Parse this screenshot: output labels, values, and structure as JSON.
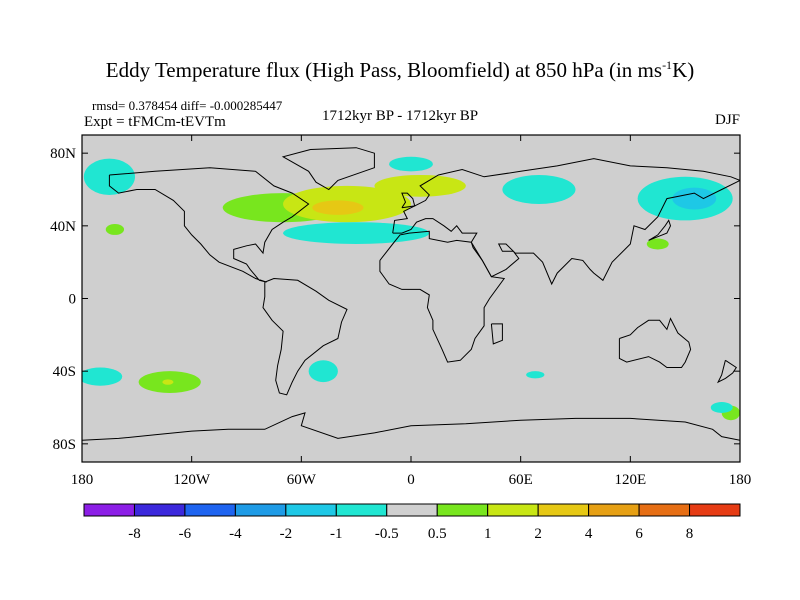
{
  "header": {
    "title": "Eddy Temperature flux (High Pass, Bloomfield) at 850 hPa (in ms",
    "title_sup": "-1",
    "title_end": "K)",
    "stats": "rmsd= 0.378454 diff= -0.000285447",
    "experiment": "Expt = tFMCm-tEVTm",
    "period": "1712kyr BP - 1712kyr BP",
    "season": "DJF"
  },
  "map": {
    "lat_labels": [
      "80N",
      "40N",
      "0",
      "40S",
      "80S"
    ],
    "lat_values": [
      80,
      40,
      0,
      -40,
      -80
    ],
    "lon_labels": [
      "180",
      "120W",
      "60W",
      "0",
      "60E",
      "120E",
      "180"
    ],
    "lon_values": [
      -180,
      -120,
      -60,
      0,
      60,
      120,
      180
    ],
    "lat_range": [
      -90,
      90
    ],
    "lon_range": [
      -180,
      180
    ],
    "background_color": "#cfcfcf"
  },
  "colorbar": {
    "colors": [
      "#8c1ee6",
      "#3c28dc",
      "#1e64f0",
      "#1e9be6",
      "#1ec8e6",
      "#20e6d2",
      "#d0d0d0",
      "#78e61e",
      "#c8e614",
      "#e6c814",
      "#e6a014",
      "#e66e14",
      "#e63c14"
    ],
    "labels": [
      "-8",
      "-6",
      "-4",
      "-2",
      "-1",
      "-0.5",
      "0.5",
      "1",
      "2",
      "4",
      "6",
      "8"
    ]
  },
  "regions": [
    {
      "name": "n-atlantic-positive",
      "color": "#78e61e",
      "lon": -70,
      "lat": 50,
      "rx": 33,
      "ry": 8
    },
    {
      "name": "n-atlantic-core-yellow",
      "color": "#c8e614",
      "lon": -35,
      "lat": 52,
      "rx": 35,
      "ry": 10
    },
    {
      "name": "n-atlantic-core-orange",
      "color": "#e6c814",
      "lon": -40,
      "lat": 50,
      "rx": 14,
      "ry": 4
    },
    {
      "name": "europe-positive",
      "color": "#c8e614",
      "lon": 5,
      "lat": 62,
      "rx": 25,
      "ry": 6
    },
    {
      "name": "n-atlantic-negative",
      "color": "#20e6d2",
      "lon": -30,
      "lat": 36,
      "rx": 40,
      "ry": 6
    },
    {
      "name": "pacific-nw-negative",
      "color": "#20e6d2",
      "lon": -165,
      "lat": 67,
      "rx": 14,
      "ry": 10
    },
    {
      "name": "arctic-negative",
      "color": "#20e6d2",
      "lon": 0,
      "lat": 74,
      "rx": 12,
      "ry": 4
    },
    {
      "name": "siberia-negative",
      "color": "#20e6d2",
      "lon": 70,
      "lat": 60,
      "rx": 20,
      "ry": 8
    },
    {
      "name": "e-asia-negative",
      "color": "#20e6d2",
      "lon": 150,
      "lat": 55,
      "rx": 26,
      "ry": 12
    },
    {
      "name": "e-asia-core-negative",
      "color": "#1ec8e6",
      "lon": 155,
      "lat": 55,
      "rx": 12,
      "ry": 6
    },
    {
      "name": "japan-positive",
      "color": "#78e61e",
      "lon": 135,
      "lat": 30,
      "rx": 6,
      "ry": 3
    },
    {
      "name": "pacific-positive",
      "color": "#78e61e",
      "lon": -162,
      "lat": 38,
      "rx": 5,
      "ry": 3
    },
    {
      "name": "s-pacific-positive",
      "color": "#78e61e",
      "lon": -132,
      "lat": -46,
      "rx": 17,
      "ry": 6
    },
    {
      "name": "s-pacific-core",
      "color": "#c8e614",
      "lon": -133,
      "lat": -46,
      "rx": 3,
      "ry": 1.5
    },
    {
      "name": "s-pacific-negative",
      "color": "#20e6d2",
      "lon": -170,
      "lat": -43,
      "rx": 12,
      "ry": 5
    },
    {
      "name": "s-america-negative",
      "color": "#20e6d2",
      "lon": -48,
      "lat": -40,
      "rx": 8,
      "ry": 6
    },
    {
      "name": "s-indian-negative",
      "color": "#20e6d2",
      "lon": 68,
      "lat": -42,
      "rx": 5,
      "ry": 2
    },
    {
      "name": "s-pacific-e-positive",
      "color": "#78e61e",
      "lon": 175,
      "lat": -63,
      "rx": 5,
      "ry": 4
    },
    {
      "name": "s-pacific-e-negative",
      "color": "#20e6d2",
      "lon": 170,
      "lat": -60,
      "rx": 6,
      "ry": 3
    }
  ]
}
